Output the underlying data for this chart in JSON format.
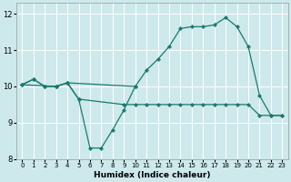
{
  "background_color": "#cde9eb",
  "grid_color": "#ffffff",
  "line_color": "#1a7a6e",
  "xlabel": "Humidex (Indice chaleur)",
  "xlim": [
    -0.5,
    23.5
  ],
  "ylim": [
    8.0,
    12.3
  ],
  "yticks": [
    8,
    9,
    10,
    11,
    12
  ],
  "xticks": [
    0,
    1,
    2,
    3,
    4,
    5,
    6,
    7,
    8,
    9,
    10,
    11,
    12,
    13,
    14,
    15,
    16,
    17,
    18,
    19,
    20,
    21,
    22,
    23
  ],
  "line1_x": [
    0,
    1,
    2,
    3,
    4,
    5,
    6,
    7,
    8,
    9,
    10
  ],
  "line1_y": [
    10.05,
    10.2,
    10.0,
    10.0,
    10.1,
    9.65,
    8.3,
    8.3,
    8.8,
    9.35,
    10.0
  ],
  "line2_x": [
    0,
    1,
    2,
    3,
    4,
    10,
    11,
    12,
    13,
    14,
    15,
    16,
    17,
    18,
    19,
    20,
    21,
    22,
    23
  ],
  "line2_y": [
    10.05,
    10.2,
    10.0,
    10.0,
    10.1,
    10.0,
    10.45,
    10.75,
    11.1,
    11.6,
    11.65,
    11.65,
    11.7,
    11.9,
    11.65,
    11.1,
    9.75,
    9.2,
    9.2
  ],
  "line3_x": [
    0,
    3,
    4,
    5,
    9,
    10,
    11,
    12,
    13,
    14,
    15,
    16,
    17,
    18,
    19,
    20,
    21,
    22,
    23
  ],
  "line3_y": [
    10.05,
    10.0,
    10.1,
    9.65,
    9.5,
    9.5,
    9.5,
    9.5,
    9.5,
    9.5,
    9.5,
    9.5,
    9.5,
    9.5,
    9.5,
    9.5,
    9.2,
    9.2,
    9.2
  ]
}
